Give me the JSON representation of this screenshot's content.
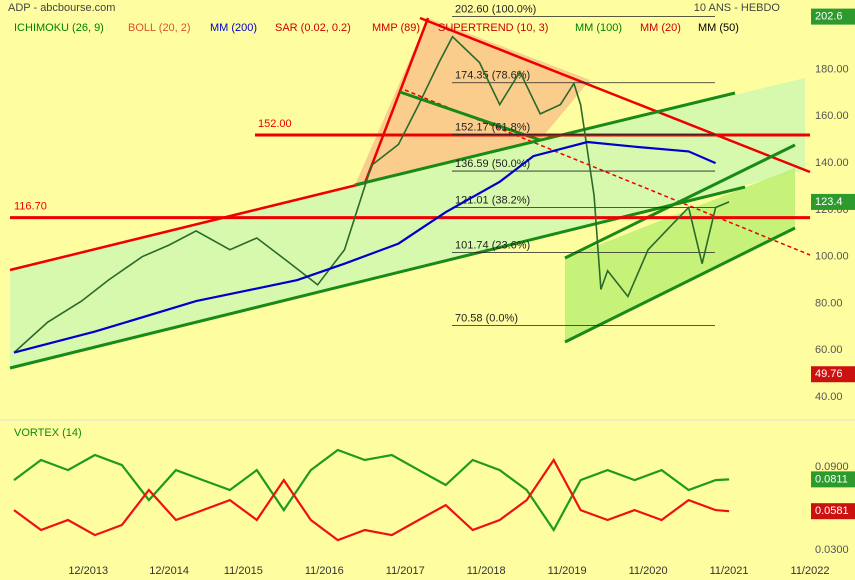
{
  "chart_data": [
    {
      "type": "line",
      "title": "ADP - abcbourse.com",
      "subtitle": "10 ANS - HEBDO",
      "legend": [
        {
          "name": "ICHIMOKU (26, 9)",
          "color": "#008000"
        },
        {
          "name": "BOLL (20, 2)",
          "color": "#e05030"
        },
        {
          "name": "SAR (0.02, 0.2)",
          "color": "#cc0000"
        },
        {
          "name": "MMP (89)",
          "color": "#cc0000"
        },
        {
          "name": "SUPERTREND (10, 3)",
          "color": "#cc0000"
        },
        {
          "name": "MM (100)",
          "color": "#008000"
        },
        {
          "name": "MM (20)",
          "color": "#cc0000"
        },
        {
          "name": "MM (50)",
          "color": "#000000"
        }
      ],
      "xlim": [
        "01/2013",
        "11/2022"
      ],
      "ylim": [
        30.2,
        209.7
      ],
      "yticks": [
        {
          "value": 40,
          "label": "40.00"
        },
        {
          "value": 60,
          "label": "60.00"
        },
        {
          "value": 80,
          "label": "80.00"
        },
        {
          "value": 100,
          "label": "100.00"
        },
        {
          "value": 120,
          "label": "120.00"
        },
        {
          "value": 140,
          "label": "140.00"
        },
        {
          "value": 160,
          "label": "160.00"
        },
        {
          "value": 180,
          "label": "180.00"
        }
      ],
      "series": [
        {
          "color": "#2a6a2a",
          "x": [
            "01/2013",
            "06/2013",
            "11/2013",
            "03/2014",
            "08/2014",
            "12/2014",
            "04/2015",
            "09/2015",
            "01/2016",
            "06/2016",
            "10/2016",
            "02/2017",
            "06/2017",
            "10/2017",
            "01/2018",
            "04/2018",
            "06/2018",
            "10/2018",
            "01/2019",
            "04/2019",
            "07/2019",
            "10/2019",
            "12/2019",
            "01/2020",
            "03/2020",
            "04/2020",
            "05/2020",
            "08/2020",
            "11/2020",
            "02/2021",
            "05/2021",
            "07/2021",
            "09/2021",
            "11/2021"
          ],
          "values": [
            59,
            72,
            81,
            90,
            100,
            105,
            111,
            103,
            108,
            97,
            88,
            103,
            139,
            148,
            165,
            183,
            194,
            183,
            165,
            179,
            161,
            165,
            174,
            165,
            126,
            86,
            94,
            83,
            103,
            112,
            121,
            97,
            121,
            123.4
          ]
        },
        {
          "name": "MM (200)",
          "color": "#0000cc",
          "x": [
            "01/2013",
            "01/2014",
            "04/2015",
            "07/2016",
            "02/2017",
            "10/2017",
            "05/2018",
            "01/2019",
            "06/2019",
            "02/2020",
            "09/2020",
            "05/2021",
            "09/2021"
          ],
          "values": [
            59,
            68,
            81,
            90,
            97,
            105.6,
            119,
            132,
            143,
            149,
            147,
            145,
            140
          ]
        }
      ],
      "levels": [
        {
          "value": 152,
          "label": "152.00"
        },
        {
          "value": 116.7,
          "label": "116.70"
        }
      ],
      "fibonacci": [
        {
          "value": 202.6,
          "label": "202.60  (100.0%)"
        },
        {
          "value": 174.35,
          "label": "174.35  (78.6%)"
        },
        {
          "value": 152.17,
          "label": "152.17  (61.8%)"
        },
        {
          "value": 136.59,
          "label": "136.59  (50.0%)"
        },
        {
          "value": 121.01,
          "label": "121.01  (38.2%)"
        },
        {
          "value": 101.74,
          "label": "101.74  (23.6%)"
        },
        {
          "value": 70.58,
          "label": "70.58  (0.0%)"
        }
      ],
      "tags": [
        {
          "value": 202.6,
          "label": "202.6",
          "color": "#2e9a2e"
        },
        {
          "value": 123.4,
          "label": "123.4",
          "color": "#2e9a2e"
        },
        {
          "value": 49.76,
          "label": "49.76",
          "color": "#cc1111"
        }
      ]
    },
    {
      "type": "line",
      "title": "VORTEX (14)",
      "xlim": [
        "01/2013",
        "11/2022"
      ],
      "xticks": [
        "12/2013",
        "12/2014",
        "11/2015",
        "11/2016",
        "11/2017",
        "11/2018",
        "11/2019",
        "11/2020",
        "11/2021",
        "11/2022"
      ],
      "ylim": [
        0.0192,
        0.1204
      ],
      "yticks": [
        {
          "value": 0.03,
          "label": "0.0300"
        },
        {
          "value": 0.09,
          "label": "0.0900"
        }
      ],
      "x": [
        "01/2013",
        "05/2013",
        "09/2013",
        "01/2014",
        "05/2014",
        "09/2014",
        "01/2015",
        "05/2015",
        "09/2015",
        "01/2016",
        "05/2016",
        "09/2016",
        "01/2017",
        "05/2017",
        "09/2017",
        "01/2018",
        "05/2018",
        "09/2018",
        "01/2019",
        "05/2019",
        "09/2019",
        "01/2020",
        "05/2020",
        "09/2020",
        "01/2021",
        "05/2021",
        "09/2021",
        "11/2021"
      ],
      "series": [
        {
          "color": "#1f9a1f",
          "values": [
            0.0806,
            0.0951,
            0.0878,
            0.0987,
            0.0914,
            0.0661,
            0.0878,
            0.0806,
            0.0734,
            0.0878,
            0.0589,
            0.0878,
            0.1023,
            0.0951,
            0.0987,
            0.0878,
            0.077,
            0.0951,
            0.0878,
            0.0734,
            0.0445,
            0.0806,
            0.0878,
            0.0806,
            0.0878,
            0.0734,
            0.0806,
            0.0811
          ]
        },
        {
          "color": "#ee1111",
          "values": [
            0.0589,
            0.0445,
            0.0517,
            0.0408,
            0.0481,
            0.0734,
            0.0517,
            0.0589,
            0.0661,
            0.0517,
            0.0806,
            0.0517,
            0.0372,
            0.0445,
            0.0408,
            0.0517,
            0.0625,
            0.0445,
            0.0517,
            0.0661,
            0.0951,
            0.0589,
            0.0517,
            0.0589,
            0.0517,
            0.0661,
            0.0589,
            0.0581
          ]
        }
      ],
      "tags": [
        {
          "value": 0.0811,
          "label": "0.0811",
          "color": "#2e9a2e"
        },
        {
          "value": 0.0581,
          "label": "0.0581",
          "color": "#cc1111"
        }
      ]
    }
  ]
}
